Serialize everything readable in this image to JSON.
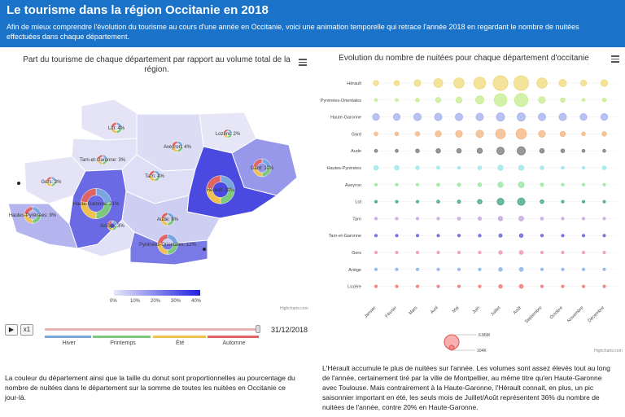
{
  "header": {
    "title": "Le tourisme dans la région Occitanie en 2018",
    "subtitle": "Afin de mieux comprendre l'évolution du tourisme au cours d'une année en Occitanie, voici une animation temporelle qui retrace l'année 2018 en regardant le nombre de nuitées effectuées dans chaque département."
  },
  "map_panel": {
    "title": "Part du tourisme de chaque département par rapport au volume total de la région.",
    "credits": "Highcharts.com",
    "departments": [
      {
        "name": "Lot",
        "share": 4,
        "label": "Lot: 4%"
      },
      {
        "name": "Lozère",
        "share": 2,
        "label": "Lozère: 2%"
      },
      {
        "name": "Aveyron",
        "share": 4,
        "label": "Aveyron: 4%"
      },
      {
        "name": "Tarn-et-Garonne",
        "share": 3,
        "label": "Tarn-et-Garonne: 3%"
      },
      {
        "name": "Gard",
        "share": 10,
        "label": "Gard: 10%"
      },
      {
        "name": "Tarn",
        "share": 4,
        "label": "Tarn: 4%"
      },
      {
        "name": "Gers",
        "share": 3,
        "label": "Gers: 3%"
      },
      {
        "name": "Hérault",
        "share": 19,
        "label": "Hérault: 19%"
      },
      {
        "name": "Haute-Garonne",
        "share": 21,
        "label": "Haute-Garonne: 21%"
      },
      {
        "name": "Hautes-Pyrénées",
        "share": 9,
        "label": "Hautes-Pyrénées: 9%"
      },
      {
        "name": "Aude",
        "share": 6,
        "label": "Aude: 6%"
      },
      {
        "name": "Ariège",
        "share": 3,
        "label": "Ariège: 3%"
      },
      {
        "name": "Pyrénées-Orientales",
        "share": 12,
        "label": "Pyrénées-Orientales: 12%"
      }
    ],
    "legend_ticks": [
      "0%",
      "10%",
      "20%",
      "30%",
      "40%"
    ],
    "colors": {
      "low": "#e8e8f8",
      "high": "#2020e0"
    }
  },
  "timeline": {
    "play_label": "▶",
    "speed_label": "x1",
    "date": "31/12/2018",
    "progress": 1.0,
    "seasons": [
      {
        "label": "Hiver",
        "color": "#7aa6e0",
        "fraction": 0.22
      },
      {
        "label": "Printemps",
        "color": "#7ec87e",
        "fraction": 0.27
      },
      {
        "label": "Été",
        "color": "#f0c050",
        "fraction": 0.25
      },
      {
        "label": "Automne",
        "color": "#e06464",
        "fraction": 0.24
      }
    ]
  },
  "map_description": "La couleur du département ainsi que la taille du donut sont proportionnelles au pourcentage du nombre de nuitées dans le département sur la somme de toutes les nuitées en Occitanie ce jour-là.",
  "bubble_panel": {
    "title": "Evolution du nombre de nuitées pour chaque département d'occitanie",
    "credits": "Highcharts.com",
    "months": [
      "Janvier",
      "Février",
      "Mars",
      "Avril",
      "Mai",
      "Juin",
      "Juillet",
      "Août",
      "Septembre",
      "Octobre",
      "Novembre",
      "Décembre"
    ],
    "size_legend": {
      "max_label": "6.86M",
      "min_label": "104K"
    },
    "departments": [
      {
        "name": "Hérault",
        "color": "#f0dc82",
        "sizes": [
          0.35,
          0.35,
          0.45,
          0.6,
          0.7,
          0.8,
          1.0,
          1.0,
          0.7,
          0.5,
          0.4,
          0.45
        ]
      },
      {
        "name": "Pyrénées-Orientales",
        "color": "#c8ee94",
        "sizes": [
          0.2,
          0.2,
          0.25,
          0.35,
          0.4,
          0.55,
          0.85,
          0.9,
          0.45,
          0.3,
          0.2,
          0.25
        ]
      },
      {
        "name": "Haute-Garonne",
        "color": "#a8b4f0",
        "sizes": [
          0.45,
          0.45,
          0.5,
          0.5,
          0.5,
          0.5,
          0.55,
          0.55,
          0.5,
          0.5,
          0.45,
          0.45
        ]
      },
      {
        "name": "Gard",
        "color": "#f4b886",
        "sizes": [
          0.25,
          0.25,
          0.3,
          0.4,
          0.45,
          0.5,
          0.65,
          0.7,
          0.45,
          0.35,
          0.25,
          0.3
        ]
      },
      {
        "name": "Aude",
        "color": "#808080",
        "sizes": [
          0.2,
          0.2,
          0.25,
          0.3,
          0.3,
          0.35,
          0.5,
          0.55,
          0.3,
          0.25,
          0.2,
          0.2
        ]
      },
      {
        "name": "Hautes-Pyrénées",
        "color": "#9ee8ec",
        "sizes": [
          0.3,
          0.3,
          0.25,
          0.22,
          0.2,
          0.25,
          0.35,
          0.35,
          0.25,
          0.2,
          0.15,
          0.25
        ]
      },
      {
        "name": "Aveyron",
        "color": "#98e8a0",
        "sizes": [
          0.12,
          0.12,
          0.15,
          0.2,
          0.22,
          0.25,
          0.35,
          0.38,
          0.22,
          0.18,
          0.12,
          0.12
        ]
      },
      {
        "name": "Lot",
        "color": "#4aa88c",
        "sizes": [
          0.12,
          0.12,
          0.15,
          0.2,
          0.22,
          0.3,
          0.45,
          0.5,
          0.25,
          0.18,
          0.12,
          0.12
        ]
      },
      {
        "name": "Tarn",
        "color": "#c8a8e0",
        "sizes": [
          0.12,
          0.12,
          0.14,
          0.18,
          0.2,
          0.22,
          0.3,
          0.32,
          0.2,
          0.16,
          0.12,
          0.12
        ]
      },
      {
        "name": "Tarn-et-Garonne",
        "color": "#6a6ad8",
        "sizes": [
          0.12,
          0.12,
          0.13,
          0.15,
          0.17,
          0.18,
          0.22,
          0.24,
          0.17,
          0.15,
          0.12,
          0.12
        ]
      },
      {
        "name": "Gers",
        "color": "#f09ab8",
        "sizes": [
          0.1,
          0.1,
          0.12,
          0.14,
          0.16,
          0.18,
          0.24,
          0.26,
          0.16,
          0.13,
          0.1,
          0.1
        ]
      },
      {
        "name": "Ariège",
        "color": "#8cb4e8",
        "sizes": [
          0.12,
          0.12,
          0.13,
          0.14,
          0.15,
          0.17,
          0.24,
          0.26,
          0.16,
          0.13,
          0.11,
          0.12
        ]
      },
      {
        "name": "Lozère",
        "color": "#f47a7a",
        "sizes": [
          0.08,
          0.08,
          0.1,
          0.12,
          0.14,
          0.16,
          0.24,
          0.26,
          0.14,
          0.1,
          0.08,
          0.08
        ]
      }
    ]
  },
  "bubble_description": "L'Hérault accumule le plus de nuitées sur l'année. Les volumes sont assez élevés tout au long de l'année, certainement tiré par la ville de Montpellier, au même titre qu'en Haute-Garonne avec Toulouse. Mais contrairement à la Haute-Garonne, l'Hérault connait, en plus, un pic saisonnier important en été, les seuls mois de Juillet/Août représentent 36% du nombre de nuitées de l'année, contre 20% en Haute-Garonne."
}
